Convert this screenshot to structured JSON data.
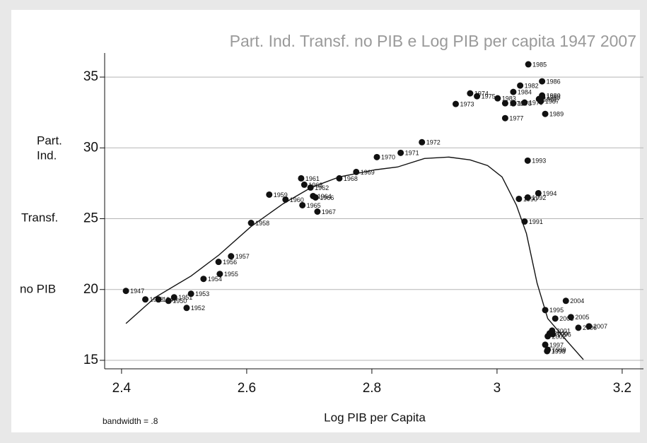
{
  "chart_data": {
    "type": "scatter",
    "title": "Part. Ind. Transf. no PIB e Log PIB per capita 1947 2007",
    "x_label": "Log PIB per Capita",
    "y_label": [
      "Part.",
      "Ind.",
      "Transf.",
      "no PIB"
    ],
    "note": "bandwidth = .8",
    "color": "#111111",
    "labels": [
      "1947",
      "1948",
      "1949",
      "1950",
      "1951",
      "1952",
      "1953",
      "1954",
      "1955",
      "1956",
      "1957",
      "1958",
      "1959",
      "1960",
      "1961",
      "1962",
      "1963",
      "1964",
      "1965",
      "1966",
      "1967",
      "1968",
      "1969",
      "1970",
      "1971",
      "1972",
      "1973",
      "1974",
      "1975",
      "1976",
      "1977",
      "1978",
      "1979",
      "1980",
      "1981",
      "1982",
      "1983",
      "1984",
      "1985",
      "1986",
      "1987",
      "1988",
      "1989",
      "1990",
      "1991",
      "1992",
      "1993",
      "1994",
      "1995",
      "1996",
      "1997",
      "1998",
      "1999",
      "2000",
      "2001",
      "2002",
      "2003",
      "2004",
      "2005",
      "2006",
      "2007"
    ],
    "x": [
      2.407,
      2.438,
      2.459,
      2.475,
      2.484,
      2.504,
      2.511,
      2.531,
      2.557,
      2.555,
      2.575,
      2.607,
      2.636,
      2.662,
      2.687,
      2.702,
      2.692,
      2.706,
      2.689,
      2.71,
      2.713,
      2.748,
      2.775,
      2.808,
      2.846,
      2.88,
      2.934,
      2.957,
      2.968,
      3.013,
      3.013,
      3.026,
      3.044,
      3.072,
      3.067,
      3.037,
      3.001,
      3.026,
      3.05,
      3.072,
      3.07,
      3.072,
      3.077,
      3.035,
      3.044,
      3.049,
      3.049,
      3.066,
      3.077,
      3.089,
      3.077,
      3.08,
      3.081,
      3.084,
      3.088,
      3.081,
      3.093,
      3.11,
      3.118,
      3.13,
      3.147
    ],
    "y": [
      19.9,
      19.3,
      19.3,
      19.2,
      19.45,
      18.7,
      19.7,
      20.75,
      21.1,
      21.95,
      22.35,
      24.7,
      26.7,
      26.35,
      27.85,
      27.2,
      27.4,
      26.6,
      25.95,
      26.5,
      25.5,
      27.85,
      28.3,
      29.35,
      29.65,
      30.4,
      33.1,
      33.85,
      33.65,
      33.15,
      32.1,
      33.15,
      33.2,
      33.7,
      33.45,
      34.4,
      33.5,
      33.95,
      35.9,
      34.7,
      33.3,
      33.6,
      32.4,
      26.4,
      24.8,
      26.5,
      29.1,
      26.8,
      18.55,
      16.85,
      16.1,
      15.65,
      15.75,
      16.9,
      17.1,
      16.7,
      17.95,
      19.2,
      18.05,
      17.3,
      17.4
    ],
    "fit": {
      "x": [
        2.407,
        2.454,
        2.511,
        2.556,
        2.607,
        2.658,
        2.703,
        2.748,
        2.805,
        2.841,
        2.884,
        2.923,
        2.957,
        2.985,
        3.008,
        3.031,
        3.047,
        3.064,
        3.081,
        3.11,
        3.138
      ],
      "y": [
        17.6,
        19.45,
        20.95,
        22.45,
        24.45,
        26.05,
        27.2,
        27.95,
        28.45,
        28.65,
        29.25,
        29.35,
        29.15,
        28.75,
        27.95,
        25.95,
        23.95,
        20.45,
        17.95,
        16.45,
        15.05
      ]
    },
    "xlim": [
      2.373,
      3.234
    ],
    "ylim": [
      14.4,
      36.7
    ],
    "xticks": [
      2.4,
      2.6,
      2.8,
      3,
      3.2
    ],
    "yticks": [
      15,
      20,
      25,
      30,
      35
    ],
    "grid": true
  }
}
